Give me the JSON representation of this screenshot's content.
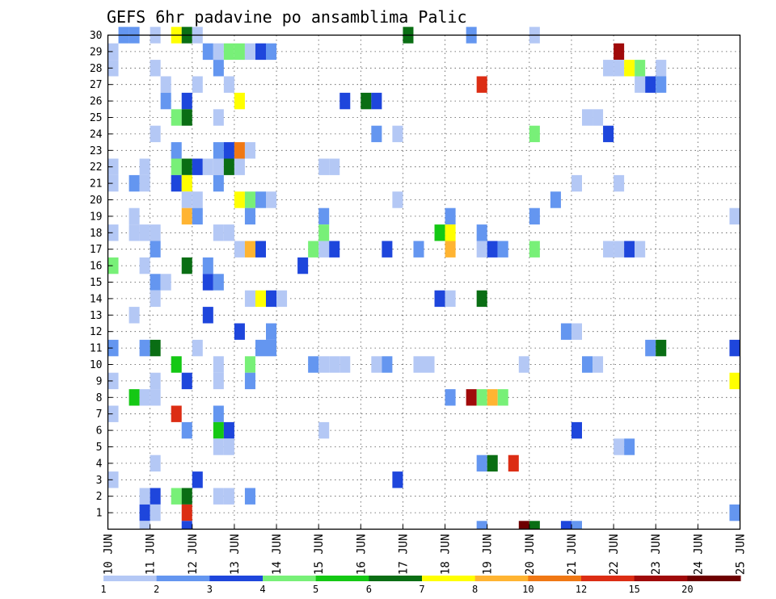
{
  "chart_data": {
    "type": "heatmap",
    "title": "GEFS 6hr padavine po ansamblima Palic",
    "xlabel": "",
    "ylabel": "",
    "x_start": "10 JUN",
    "x_end": "25 JUN",
    "x_ticks": [
      "10 JUN",
      "11 JUN",
      "12 JUN",
      "13 JUN",
      "14 JUN",
      "15 JUN",
      "16 JUN",
      "17 JUN",
      "18 JUN",
      "19 JUN",
      "20 JUN",
      "21 JUN",
      "22 JUN",
      "23 JUN",
      "24 JUN",
      "25 JUN"
    ],
    "steps_per_day": 4,
    "y_ticks": [
      1,
      2,
      3,
      4,
      5,
      6,
      7,
      8,
      9,
      10,
      11,
      12,
      13,
      14,
      15,
      16,
      17,
      18,
      19,
      20,
      21,
      22,
      23,
      24,
      25,
      26,
      27,
      28,
      29,
      30
    ],
    "ylim": [
      0,
      30
    ],
    "grid": "dotted",
    "legend": {
      "placement": "bottom",
      "labels": [
        "1",
        "2",
        "3",
        "4",
        "5",
        "6",
        "7",
        "8",
        "10",
        "12",
        "15",
        "20"
      ],
      "colors": [
        "#b4c8f5",
        "#6496f0",
        "#1e46dc",
        "#78f078",
        "#14c814",
        "#0a6e14",
        "#ffff00",
        "#ffb432",
        "#f07814",
        "#dc2d14",
        "#a00a0a",
        "#6e0000"
      ]
    },
    "legend_classes": [
      "1-2",
      "2-3",
      "3-4",
      "4-5",
      "5-6",
      "6-7",
      "7-8",
      "8-10",
      "10-12",
      "12-15",
      "15-20",
      ">20"
    ],
    "cells": [
      {
        "member": 30,
        "cells": [
          [
            1,
            1
          ],
          [
            2,
            1
          ],
          [
            4,
            0
          ],
          [
            6,
            6
          ],
          [
            7,
            5
          ],
          [
            8,
            0
          ],
          [
            28,
            5
          ],
          [
            34,
            1
          ],
          [
            40,
            0
          ]
        ]
      },
      {
        "member": 29,
        "cells": [
          [
            0,
            0
          ],
          [
            9,
            1
          ],
          [
            10,
            0
          ],
          [
            11,
            3
          ],
          [
            12,
            3
          ],
          [
            13,
            0
          ],
          [
            14,
            2
          ],
          [
            15,
            1
          ],
          [
            48,
            10
          ]
        ]
      },
      {
        "member": 28,
        "cells": [
          [
            0,
            0
          ],
          [
            4,
            0
          ],
          [
            10,
            1
          ],
          [
            47,
            0
          ],
          [
            48,
            0
          ],
          [
            49,
            6
          ],
          [
            50,
            3
          ],
          [
            52,
            0
          ]
        ]
      },
      {
        "member": 27,
        "cells": [
          [
            5,
            0
          ],
          [
            8,
            0
          ],
          [
            11,
            0
          ],
          [
            35,
            9
          ],
          [
            50,
            0
          ],
          [
            51,
            2
          ],
          [
            52,
            1
          ]
        ]
      },
      {
        "member": 26,
        "cells": [
          [
            5,
            1
          ],
          [
            7,
            2
          ],
          [
            12,
            6
          ],
          [
            22,
            2
          ],
          [
            24,
            5
          ],
          [
            25,
            2
          ]
        ]
      },
      {
        "member": 25,
        "cells": [
          [
            6,
            3
          ],
          [
            7,
            5
          ],
          [
            10,
            0
          ],
          [
            45,
            0
          ],
          [
            46,
            0
          ]
        ]
      },
      {
        "member": 24,
        "cells": [
          [
            4,
            0
          ],
          [
            25,
            1
          ],
          [
            27,
            0
          ],
          [
            40,
            3
          ],
          [
            47,
            2
          ]
        ]
      },
      {
        "member": 23,
        "cells": [
          [
            6,
            1
          ],
          [
            10,
            1
          ],
          [
            11,
            2
          ],
          [
            12,
            8
          ],
          [
            13,
            0
          ]
        ]
      },
      {
        "member": 22,
        "cells": [
          [
            0,
            0
          ],
          [
            3,
            0
          ],
          [
            6,
            3
          ],
          [
            7,
            5
          ],
          [
            8,
            2
          ],
          [
            9,
            0
          ],
          [
            10,
            0
          ],
          [
            11,
            5
          ],
          [
            12,
            0
          ],
          [
            20,
            0
          ],
          [
            21,
            0
          ]
        ]
      },
      {
        "member": 21,
        "cells": [
          [
            0,
            0
          ],
          [
            2,
            1
          ],
          [
            3,
            0
          ],
          [
            6,
            2
          ],
          [
            7,
            6
          ],
          [
            10,
            1
          ],
          [
            44,
            0
          ],
          [
            48,
            0
          ]
        ]
      },
      {
        "member": 20,
        "cells": [
          [
            7,
            0
          ],
          [
            8,
            0
          ],
          [
            12,
            6
          ],
          [
            13,
            3
          ],
          [
            14,
            1
          ],
          [
            15,
            0
          ],
          [
            27,
            0
          ],
          [
            42,
            1
          ]
        ]
      },
      {
        "member": 19,
        "cells": [
          [
            2,
            0
          ],
          [
            7,
            7
          ],
          [
            8,
            1
          ],
          [
            13,
            1
          ],
          [
            20,
            1
          ],
          [
            32,
            1
          ],
          [
            40,
            1
          ],
          [
            59,
            0
          ]
        ]
      },
      {
        "member": 18,
        "cells": [
          [
            0,
            0
          ],
          [
            2,
            0
          ],
          [
            3,
            0
          ],
          [
            4,
            0
          ],
          [
            10,
            0
          ],
          [
            11,
            0
          ],
          [
            20,
            3
          ],
          [
            31,
            4
          ],
          [
            32,
            6
          ],
          [
            35,
            1
          ]
        ]
      },
      {
        "member": 17,
        "cells": [
          [
            4,
            1
          ],
          [
            12,
            0
          ],
          [
            13,
            7
          ],
          [
            14,
            2
          ],
          [
            19,
            3
          ],
          [
            20,
            0
          ],
          [
            21,
            2
          ],
          [
            26,
            2
          ],
          [
            29,
            1
          ],
          [
            32,
            7
          ],
          [
            35,
            0
          ],
          [
            36,
            2
          ],
          [
            37,
            1
          ],
          [
            40,
            3
          ],
          [
            47,
            0
          ],
          [
            48,
            0
          ],
          [
            49,
            2
          ],
          [
            50,
            0
          ]
        ]
      },
      {
        "member": 16,
        "cells": [
          [
            0,
            3
          ],
          [
            3,
            0
          ],
          [
            7,
            5
          ],
          [
            9,
            1
          ],
          [
            18,
            2
          ]
        ]
      },
      {
        "member": 15,
        "cells": [
          [
            4,
            1
          ],
          [
            5,
            0
          ],
          [
            9,
            2
          ],
          [
            10,
            1
          ]
        ]
      },
      {
        "member": 14,
        "cells": [
          [
            4,
            0
          ],
          [
            13,
            0
          ],
          [
            14,
            6
          ],
          [
            15,
            2
          ],
          [
            16,
            0
          ],
          [
            31,
            2
          ],
          [
            32,
            0
          ],
          [
            35,
            5
          ]
        ]
      },
      {
        "member": 13,
        "cells": [
          [
            2,
            0
          ],
          [
            9,
            2
          ]
        ]
      },
      {
        "member": 12,
        "cells": [
          [
            12,
            2
          ],
          [
            15,
            1
          ],
          [
            43,
            1
          ],
          [
            44,
            0
          ]
        ]
      },
      {
        "member": 11,
        "cells": [
          [
            0,
            1
          ],
          [
            3,
            1
          ],
          [
            4,
            5
          ],
          [
            8,
            0
          ],
          [
            14,
            1
          ],
          [
            15,
            1
          ],
          [
            51,
            1
          ],
          [
            52,
            5
          ],
          [
            59,
            2
          ]
        ]
      },
      {
        "member": 10,
        "cells": [
          [
            6,
            4
          ],
          [
            10,
            0
          ],
          [
            13,
            3
          ],
          [
            19,
            1
          ],
          [
            20,
            0
          ],
          [
            21,
            0
          ],
          [
            22,
            0
          ],
          [
            25,
            0
          ],
          [
            26,
            1
          ],
          [
            29,
            0
          ],
          [
            30,
            0
          ],
          [
            39,
            0
          ],
          [
            45,
            1
          ],
          [
            46,
            0
          ]
        ]
      },
      {
        "member": 9,
        "cells": [
          [
            0,
            0
          ],
          [
            4,
            0
          ],
          [
            7,
            2
          ],
          [
            10,
            0
          ],
          [
            13,
            1
          ],
          [
            59,
            6
          ]
        ]
      },
      {
        "member": 8,
        "cells": [
          [
            2,
            4
          ],
          [
            3,
            0
          ],
          [
            4,
            0
          ],
          [
            32,
            1
          ],
          [
            34,
            10
          ],
          [
            35,
            3
          ],
          [
            36,
            7
          ],
          [
            37,
            3
          ]
        ]
      },
      {
        "member": 7,
        "cells": [
          [
            0,
            0
          ],
          [
            6,
            9
          ],
          [
            10,
            1
          ]
        ]
      },
      {
        "member": 6,
        "cells": [
          [
            7,
            1
          ],
          [
            10,
            4
          ],
          [
            11,
            2
          ],
          [
            20,
            0
          ],
          [
            44,
            2
          ]
        ]
      },
      {
        "member": 5,
        "cells": [
          [
            10,
            0
          ],
          [
            11,
            0
          ],
          [
            48,
            0
          ],
          [
            49,
            1
          ]
        ]
      },
      {
        "member": 4,
        "cells": [
          [
            4,
            0
          ],
          [
            35,
            1
          ],
          [
            36,
            5
          ],
          [
            38,
            9
          ]
        ]
      },
      {
        "member": 3,
        "cells": [
          [
            0,
            0
          ],
          [
            8,
            2
          ],
          [
            27,
            2
          ]
        ]
      },
      {
        "member": 2,
        "cells": [
          [
            3,
            0
          ],
          [
            4,
            2
          ],
          [
            6,
            3
          ],
          [
            7,
            5
          ],
          [
            10,
            0
          ],
          [
            11,
            0
          ],
          [
            13,
            1
          ]
        ]
      },
      {
        "member": 1,
        "cells": [
          [
            3,
            2
          ],
          [
            4,
            0
          ],
          [
            7,
            9
          ],
          [
            59,
            1
          ]
        ]
      },
      {
        "member": 0,
        "cells": [
          [
            3,
            0
          ],
          [
            7,
            2
          ],
          [
            35,
            1
          ],
          [
            39,
            11
          ],
          [
            40,
            5
          ],
          [
            43,
            2
          ],
          [
            44,
            1
          ]
        ]
      }
    ]
  }
}
